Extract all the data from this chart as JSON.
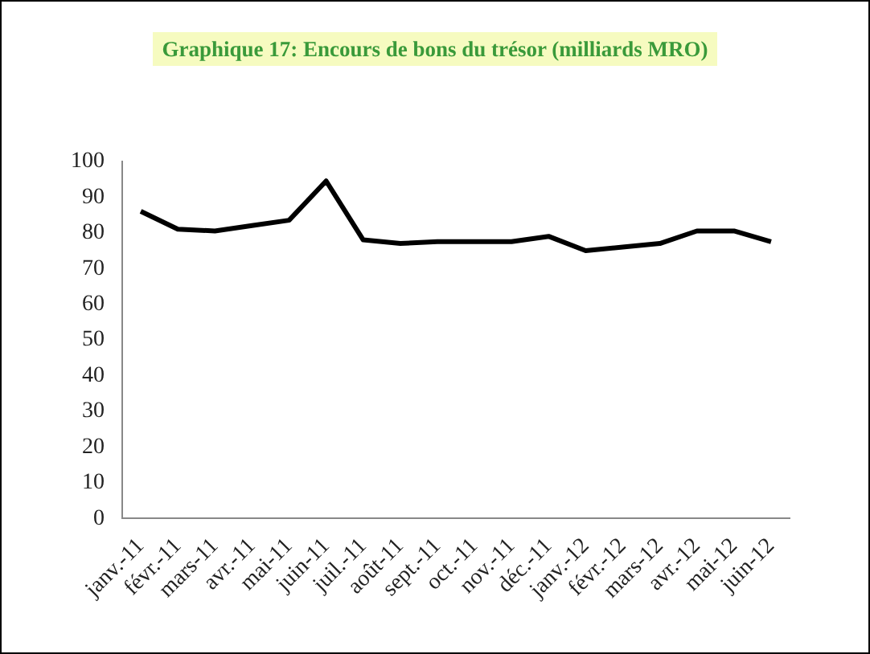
{
  "chart_data": {
    "type": "line",
    "title": "Graphique 17: Encours de bons du  trésor  (milliards MRO)",
    "categories": [
      "janv.-11",
      "févr.-11",
      "mars-11",
      "avr.-11",
      "mai-11",
      "juin-11",
      "juil.-11",
      "août-11",
      "sept.-11",
      "oct.-11",
      "nov.-11",
      "déc.-11",
      "janv.-12",
      "févr.-12",
      "mars-12",
      "avr.-12",
      "mai-12",
      "juin-12"
    ],
    "series": [
      {
        "color": "#000000",
        "values": [
          86,
          81,
          80.5,
          82,
          83.5,
          94.5,
          78,
          77,
          77.5,
          77.5,
          77.5,
          79,
          75,
          76,
          77,
          80.5,
          80.5,
          77.5
        ]
      }
    ],
    "ylim": [
      0,
      100
    ],
    "yticks": [
      0,
      10,
      20,
      30,
      40,
      50,
      60,
      70,
      80,
      90,
      100
    ],
    "grid": false,
    "legend": false,
    "marker": "none",
    "line_style": "solid"
  }
}
